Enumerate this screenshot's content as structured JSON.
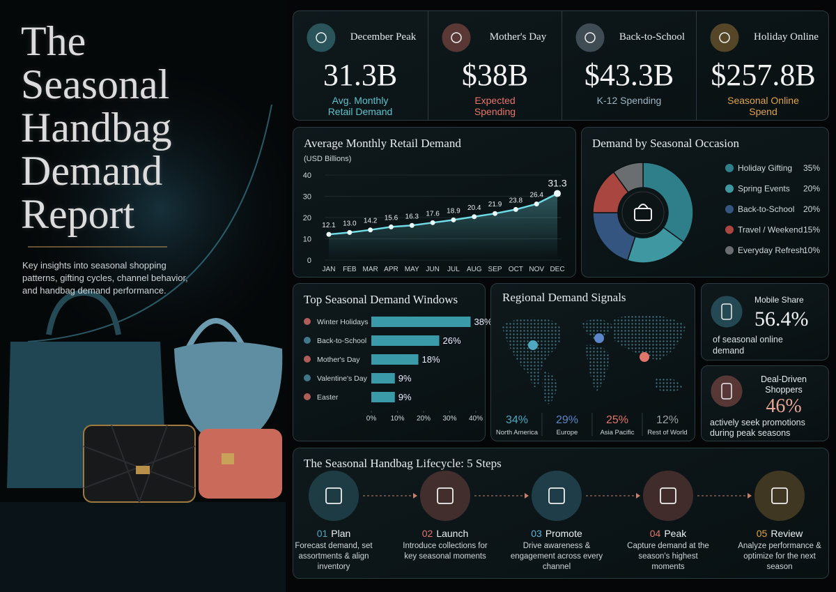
{
  "header": {
    "title": "The Seasonal Handbag Demand Report",
    "subtitle": "Key insights into seasonal shopping patterns, gifting cycles, channel behavior, and handbag demand performance."
  },
  "kpis": [
    {
      "label": "December Peak",
      "value": "31.3B",
      "caption": "Avg. Monthly Retail Demand",
      "color": "#5cc3cf"
    },
    {
      "label": "Mother's Day",
      "value": "$38B",
      "caption": "Expected Spending",
      "color": "#e8766b"
    },
    {
      "label": "Back-to-School",
      "value": "$43.3B",
      "caption": "K-12 Spending",
      "color": "#9fb4c2"
    },
    {
      "label": "Holiday Online",
      "value": "$257.8B",
      "caption": "Seasonal Online Spend",
      "color": "#e0a449"
    }
  ],
  "chart_data": [
    {
      "type": "line",
      "title": "Average Monthly Retail Demand",
      "y_label": "(USD Billions)",
      "categories": [
        "JAN",
        "FEB",
        "MAR",
        "APR",
        "MAY",
        "JUN",
        "JUL",
        "AUG",
        "SEP",
        "OCT",
        "NOV",
        "DEC"
      ],
      "values": [
        12.1,
        13.0,
        14.2,
        15.6,
        16.3,
        17.6,
        18.9,
        20.4,
        21.9,
        23.8,
        26.4,
        31.3
      ],
      "value_labels": [
        "12.1",
        "13.0",
        "14.2",
        "15.6",
        "16.3",
        "17.6",
        "18.9",
        "20.4",
        "21.9",
        "23.8",
        "26.4",
        "31.3"
      ],
      "ylim": [
        0,
        40
      ],
      "yticks": [
        0,
        10,
        20,
        30,
        40
      ],
      "color": "#6fdbe6"
    },
    {
      "type": "pie",
      "title": "Demand by Seasonal Occasion",
      "categories": [
        "Holiday Gifting",
        "Spring Events",
        "Back-to-School",
        "Travel / Weekend",
        "Everyday Refresh"
      ],
      "values": [
        35,
        20,
        20,
        15,
        10
      ],
      "value_labels": [
        "35%",
        "20%",
        "20%",
        "15%",
        "10%"
      ],
      "colors": [
        "#2f7f8a",
        "#3f97a1",
        "#34557f",
        "#a8463f",
        "#6b6e70"
      ]
    },
    {
      "type": "bar",
      "orientation": "horizontal",
      "title": "Top Seasonal Demand Windows",
      "categories": [
        "Winter Holidays",
        "Back-to-School",
        "Mother's Day",
        "Valentine's Day",
        "Easter"
      ],
      "values": [
        38,
        26,
        18,
        9,
        9
      ],
      "value_labels": [
        "38%",
        "26%",
        "18%",
        "9%",
        "9%"
      ],
      "xlim": [
        0,
        40
      ],
      "xticks": [
        {
          "value": 0,
          "label": "0%"
        },
        {
          "value": 10,
          "label": "10%"
        },
        {
          "value": 20,
          "label": "20%"
        },
        {
          "value": 30,
          "label": "30%"
        },
        {
          "value": 40,
          "label": "40%"
        }
      ],
      "color": "#3a9aa8"
    }
  ],
  "regional": {
    "title": "Regional Demand Signals",
    "regions": [
      {
        "share": "34%",
        "name": "North America",
        "color": "#4fa8c0"
      },
      {
        "share": "29%",
        "name": "Europe",
        "color": "#5c86c7"
      },
      {
        "share": "25%",
        "name": "Asia Pacific",
        "color": "#e0766b"
      },
      {
        "share": "12%",
        "name": "Rest of World",
        "color": "#9aa3a8"
      }
    ]
  },
  "stats": [
    {
      "label": "Mobile Share",
      "value": "56.4%",
      "caption": "of seasonal online demand"
    },
    {
      "label": "Deal-Driven Shoppers",
      "value": "46%",
      "caption": "actively seek promotions during peak seasons"
    }
  ],
  "lifecycle": {
    "title": "The Seasonal Handbag Lifecycle: 5 Steps",
    "steps": [
      {
        "number": "01",
        "name": "Plan",
        "text": "Forecast demand, set assortments & align inventory",
        "color": "#4fa8c0"
      },
      {
        "number": "02",
        "name": "Launch",
        "text": "Introduce collections for key seasonal moments",
        "color": "#e0766b"
      },
      {
        "number": "03",
        "name": "Promote",
        "text": "Drive awareness & engagement across every channel",
        "color": "#5ab6d8"
      },
      {
        "number": "04",
        "name": "Peak",
        "text": "Capture demand at the season's highest moments",
        "color": "#e0766b"
      },
      {
        "number": "05",
        "name": "Review",
        "text": "Analyze performance & optimize for the next season",
        "color": "#e0a449"
      }
    ]
  }
}
